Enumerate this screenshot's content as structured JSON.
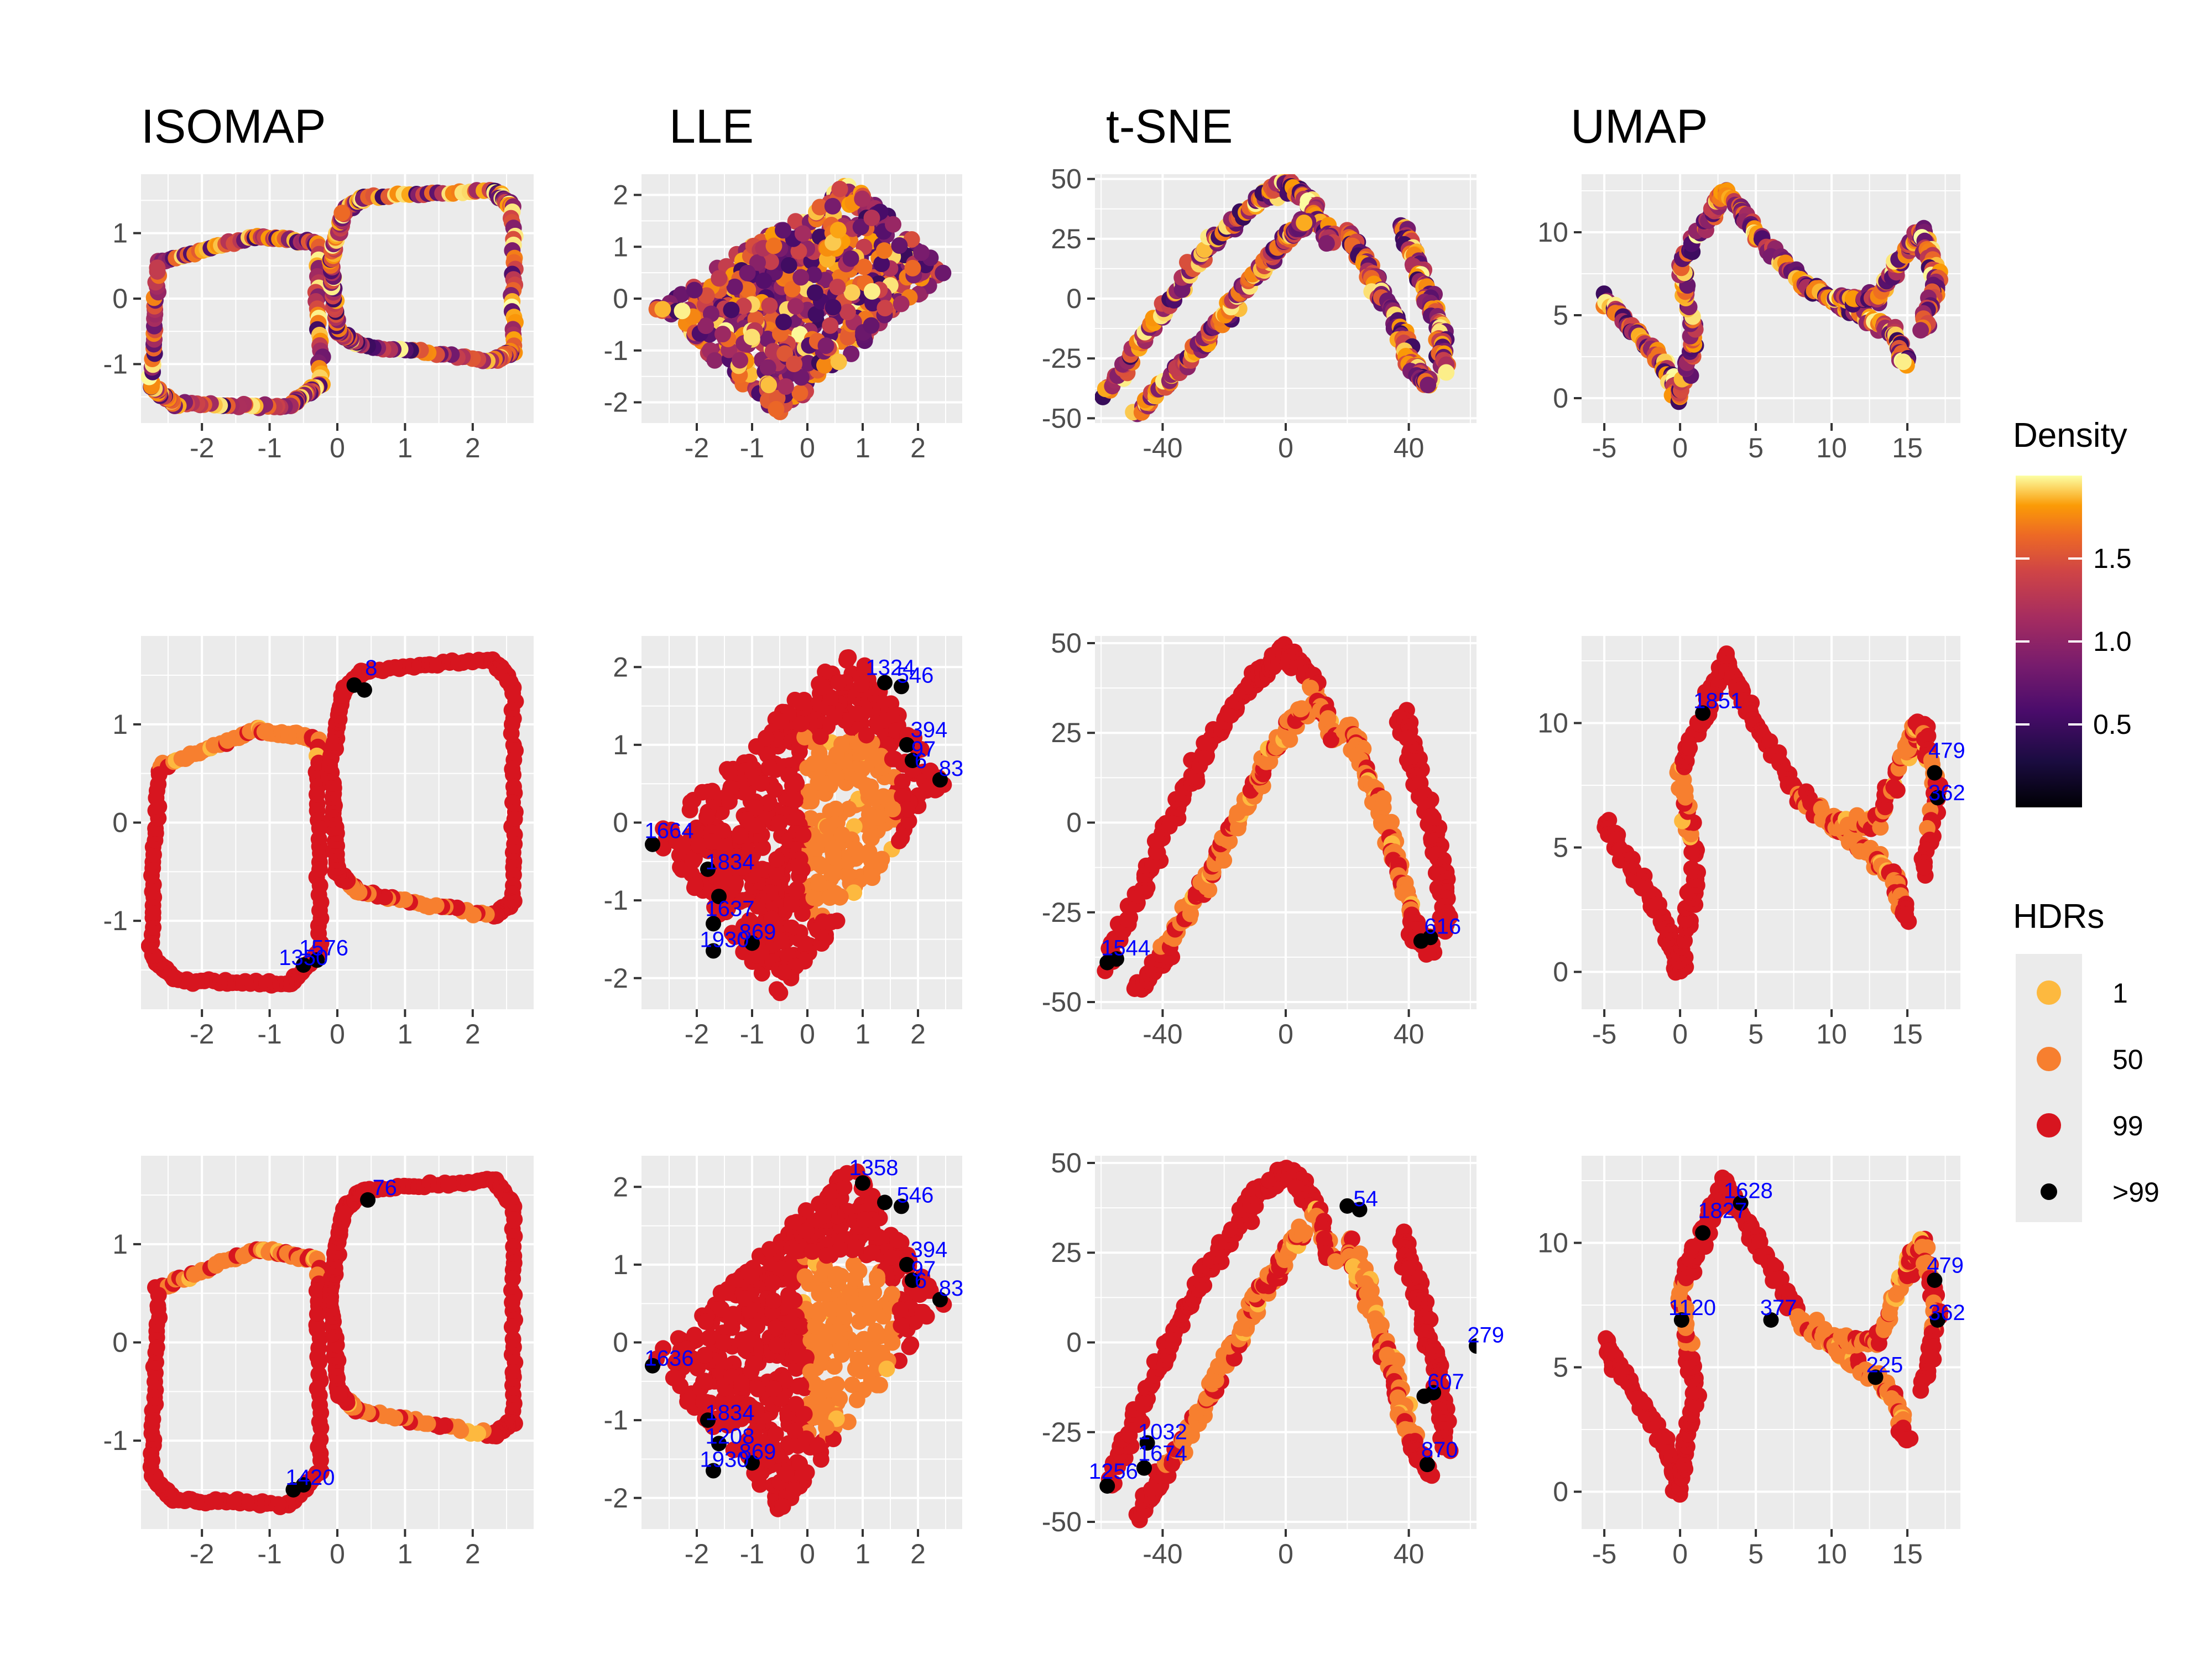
{
  "figure": {
    "columns": [
      {
        "method": "ISOMAP",
        "xlim": [
          -2.9,
          2.9
        ],
        "xticks": [
          -2,
          -1,
          0,
          1,
          2
        ]
      },
      {
        "method": "LLE",
        "xlim": [
          -3.0,
          2.8
        ],
        "xticks": [
          -2,
          -1,
          0,
          1,
          2
        ]
      },
      {
        "method": "t-SNE",
        "xlim": [
          -62,
          62
        ],
        "xticks": [
          -40,
          0,
          40
        ]
      },
      {
        "method": "UMAP",
        "xlim": [
          -6.5,
          18.5
        ],
        "xticks": [
          -5,
          0,
          5,
          10,
          15
        ]
      }
    ],
    "colors": {
      "panel_bg": "#ebebeb",
      "grid": "#ffffff",
      "annotation": "#0000ff"
    }
  },
  "chart_data": [
    {
      "type": "scatter",
      "row": 1,
      "method": "ISOMAP",
      "color_by": "Density",
      "xlim": [
        -2.9,
        2.9
      ],
      "ylim": [
        -1.9,
        1.9
      ],
      "xticks": [
        -2,
        -1,
        0,
        1,
        2
      ],
      "yticks": [
        -1,
        0,
        1
      ],
      "shape": "figure-eight of two rounded squares spanning x -2.8..2.8, y -1.7..1.7"
    },
    {
      "type": "scatter",
      "row": 1,
      "method": "LLE",
      "color_by": "Density",
      "xlim": [
        -3.0,
        2.8
      ],
      "ylim": [
        -2.4,
        2.4
      ],
      "xticks": [
        -2,
        -1,
        0,
        1,
        2
      ],
      "yticks": [
        -2,
        -1,
        0,
        1,
        2
      ],
      "shape": "tilted rectangle from (-0.5,-2.3) to (1.0,2.3) corners, width ~4"
    },
    {
      "type": "scatter",
      "row": 1,
      "method": "t-SNE",
      "color_by": "Density",
      "xlim": [
        -62,
        62
      ],
      "ylim": [
        -52,
        52
      ],
      "xticks": [
        -40,
        0,
        40
      ],
      "yticks": [
        -50,
        -25,
        0,
        25,
        50
      ],
      "shape": "two inverted-V bands meeting near (0,48), right wavy bands at x 30..55"
    },
    {
      "type": "scatter",
      "row": 1,
      "method": "UMAP",
      "color_by": "Density",
      "xlim": [
        -6.5,
        18.5
      ],
      "ylim": [
        -1.5,
        13.5
      ],
      "xticks": [
        -5,
        0,
        5,
        10,
        15
      ],
      "yticks": [
        0,
        5,
        10
      ],
      "shape": "wavy band from (-5,6) through (2,12) to (16,2) and (16,10)"
    },
    {
      "type": "scatter",
      "row": 2,
      "method": "ISOMAP",
      "color_by": "HDRs",
      "xlim": [
        -2.9,
        2.9
      ],
      "ylim": [
        -1.9,
        1.9
      ],
      "xticks": [
        -2,
        -1,
        0,
        1,
        2
      ],
      "yticks": [
        -1,
        0,
        1
      ],
      "outliers": [
        {
          "x": 0.25,
          "y": 1.4
        },
        {
          "x": 0.4,
          "y": 1.35
        },
        {
          "x": -0.5,
          "y": -1.45
        },
        {
          "x": -0.3,
          "y": -1.4
        }
      ],
      "labels": [
        {
          "x": 0.5,
          "y": 1.5,
          "text": "8"
        },
        {
          "x": -0.5,
          "y": -1.45,
          "text": "1350"
        },
        {
          "x": -0.2,
          "y": -1.35,
          "text": "1576"
        }
      ]
    },
    {
      "type": "scatter",
      "row": 2,
      "method": "LLE",
      "color_by": "HDRs",
      "xlim": [
        -3.0,
        2.8
      ],
      "ylim": [
        -2.4,
        2.4
      ],
      "xticks": [
        -2,
        -1,
        0,
        1,
        2
      ],
      "yticks": [
        -2,
        -1,
        0,
        1,
        2
      ],
      "outliers": [
        {
          "x": -2.8,
          "y": -0.28
        },
        {
          "x": -1.8,
          "y": -0.6
        },
        {
          "x": -1.6,
          "y": -0.95
        },
        {
          "x": -1.7,
          "y": -1.3
        },
        {
          "x": -1.7,
          "y": -1.65
        },
        {
          "x": -1.0,
          "y": -1.55
        },
        {
          "x": 1.4,
          "y": 1.8
        },
        {
          "x": 1.7,
          "y": 1.75
        },
        {
          "x": 1.8,
          "y": 1.0
        },
        {
          "x": 1.9,
          "y": 0.8
        },
        {
          "x": 2.4,
          "y": 0.55
        }
      ],
      "labels": [
        {
          "x": -2.5,
          "y": -0.2,
          "text": "1664"
        },
        {
          "x": -1.4,
          "y": -0.6,
          "text": "1834"
        },
        {
          "x": -1.4,
          "y": -1.2,
          "text": "1637"
        },
        {
          "x": -1.5,
          "y": -1.6,
          "text": "1930"
        },
        {
          "x": -0.9,
          "y": -1.5,
          "text": "869"
        },
        {
          "x": 1.5,
          "y": 1.9,
          "text": "1324"
        },
        {
          "x": 1.95,
          "y": 1.8,
          "text": "546"
        },
        {
          "x": 2.2,
          "y": 1.1,
          "text": "394"
        },
        {
          "x": 2.1,
          "y": 0.85,
          "text": "97"
        },
        {
          "x": 2.05,
          "y": 0.7,
          "text": "6"
        },
        {
          "x": 2.6,
          "y": 0.6,
          "text": "83"
        }
      ]
    },
    {
      "type": "scatter",
      "row": 2,
      "method": "t-SNE",
      "color_by": "HDRs",
      "xlim": [
        -62,
        62
      ],
      "ylim": [
        -52,
        52
      ],
      "xticks": [
        -40,
        0,
        40
      ],
      "yticks": [
        -50,
        -25,
        0,
        25,
        50
      ],
      "outliers": [
        {
          "x": -58,
          "y": -39
        },
        {
          "x": -55,
          "y": -38
        },
        {
          "x": 44,
          "y": -33
        },
        {
          "x": 47,
          "y": -32
        }
      ],
      "labels": [
        {
          "x": -52,
          "y": -37,
          "text": "1544"
        },
        {
          "x": 51,
          "y": -31,
          "text": "616"
        }
      ]
    },
    {
      "type": "scatter",
      "row": 2,
      "method": "UMAP",
      "color_by": "HDRs",
      "xlim": [
        -6.5,
        18.5
      ],
      "ylim": [
        -1.5,
        13.5
      ],
      "xticks": [
        -5,
        0,
        5,
        10,
        15
      ],
      "yticks": [
        0,
        5,
        10
      ],
      "outliers": [
        {
          "x": 1.5,
          "y": 10.4
        },
        {
          "x": 16.8,
          "y": 8.0
        },
        {
          "x": 17.0,
          "y": 7.0
        }
      ],
      "labels": [
        {
          "x": 2.5,
          "y": 10.6,
          "text": "1851"
        },
        {
          "x": 17.6,
          "y": 8.6,
          "text": "479"
        },
        {
          "x": 17.6,
          "y": 6.9,
          "text": "362"
        }
      ]
    },
    {
      "type": "scatter",
      "row": 3,
      "method": "ISOMAP",
      "color_by": "HDRs",
      "xlim": [
        -2.9,
        2.9
      ],
      "ylim": [
        -1.9,
        1.9
      ],
      "xticks": [
        -2,
        -1,
        0,
        1,
        2
      ],
      "yticks": [
        -1,
        0,
        1
      ],
      "outliers": [
        {
          "x": 0.45,
          "y": 1.45
        },
        {
          "x": -0.65,
          "y": -1.5
        },
        {
          "x": -0.5,
          "y": -1.45
        }
      ],
      "labels": [
        {
          "x": 0.7,
          "y": 1.5,
          "text": "76"
        },
        {
          "x": -0.4,
          "y": -1.45,
          "text": "1420"
        }
      ]
    },
    {
      "type": "scatter",
      "row": 3,
      "method": "LLE",
      "color_by": "HDRs",
      "xlim": [
        -3.0,
        2.8
      ],
      "ylim": [
        -2.4,
        2.4
      ],
      "xticks": [
        -2,
        -1,
        0,
        1,
        2
      ],
      "yticks": [
        -2,
        -1,
        0,
        1,
        2
      ],
      "outliers": [
        {
          "x": -2.8,
          "y": -0.3
        },
        {
          "x": -1.8,
          "y": -1.0
        },
        {
          "x": -1.6,
          "y": -1.3
        },
        {
          "x": -1.7,
          "y": -1.65
        },
        {
          "x": -1.0,
          "y": -1.55
        },
        {
          "x": 1.0,
          "y": 2.05
        },
        {
          "x": 1.4,
          "y": 1.8
        },
        {
          "x": 1.7,
          "y": 1.75
        },
        {
          "x": 1.8,
          "y": 1.0
        },
        {
          "x": 1.9,
          "y": 0.8
        },
        {
          "x": 2.4,
          "y": 0.55
        }
      ],
      "labels": [
        {
          "x": -2.5,
          "y": -0.3,
          "text": "1636"
        },
        {
          "x": -1.4,
          "y": -1.0,
          "text": "1834"
        },
        {
          "x": -1.4,
          "y": -1.3,
          "text": "1208"
        },
        {
          "x": -1.5,
          "y": -1.6,
          "text": "1930"
        },
        {
          "x": -0.9,
          "y": -1.5,
          "text": "869"
        },
        {
          "x": 1.2,
          "y": 2.15,
          "text": "1358"
        },
        {
          "x": 1.95,
          "y": 1.8,
          "text": "546"
        },
        {
          "x": 2.2,
          "y": 1.1,
          "text": "394"
        },
        {
          "x": 2.1,
          "y": 0.85,
          "text": "97"
        },
        {
          "x": 2.05,
          "y": 0.7,
          "text": "6"
        },
        {
          "x": 2.6,
          "y": 0.6,
          "text": "83"
        }
      ]
    },
    {
      "type": "scatter",
      "row": 3,
      "method": "t-SNE",
      "color_by": "HDRs",
      "xlim": [
        -62,
        62
      ],
      "ylim": [
        -52,
        52
      ],
      "xticks": [
        -40,
        0,
        40
      ],
      "yticks": [
        -50,
        -25,
        0,
        25,
        50
      ],
      "outliers": [
        {
          "x": 20,
          "y": 38
        },
        {
          "x": 24,
          "y": 37
        },
        {
          "x": 62,
          "y": -1
        },
        {
          "x": 45,
          "y": -15
        },
        {
          "x": 48,
          "y": -14
        },
        {
          "x": -45,
          "y": -28
        },
        {
          "x": -46,
          "y": -35
        },
        {
          "x": -58,
          "y": -40
        },
        {
          "x": 46,
          "y": -34
        }
      ],
      "labels": [
        {
          "x": 26,
          "y": 38,
          "text": "54"
        },
        {
          "x": 65,
          "y": 0,
          "text": "279"
        },
        {
          "x": 52,
          "y": -13,
          "text": "607"
        },
        {
          "x": -40,
          "y": -27,
          "text": "1032"
        },
        {
          "x": -40,
          "y": -33,
          "text": "1674"
        },
        {
          "x": -56,
          "y": -38,
          "text": "1256"
        },
        {
          "x": 50,
          "y": -32,
          "text": "870"
        }
      ]
    },
    {
      "type": "scatter",
      "row": 3,
      "method": "UMAP",
      "color_by": "HDRs",
      "xlim": [
        -6.5,
        18.5
      ],
      "ylim": [
        -1.5,
        13.5
      ],
      "xticks": [
        -5,
        0,
        5,
        10,
        15
      ],
      "yticks": [
        0,
        5,
        10
      ],
      "outliers": [
        {
          "x": 1.5,
          "y": 10.4
        },
        {
          "x": 4.0,
          "y": 11.6
        },
        {
          "x": 0.1,
          "y": 6.9
        },
        {
          "x": 6.0,
          "y": 6.9
        },
        {
          "x": 12.9,
          "y": 4.6
        },
        {
          "x": 16.8,
          "y": 8.5
        },
        {
          "x": 17.0,
          "y": 6.9
        }
      ],
      "labels": [
        {
          "x": 2.8,
          "y": 11.0,
          "text": "1827"
        },
        {
          "x": 4.5,
          "y": 11.8,
          "text": "1628"
        },
        {
          "x": 0.8,
          "y": 7.1,
          "text": "1120"
        },
        {
          "x": 6.5,
          "y": 7.1,
          "text": "377"
        },
        {
          "x": 13.5,
          "y": 4.8,
          "text": "225"
        },
        {
          "x": 17.5,
          "y": 8.8,
          "text": "479"
        },
        {
          "x": 17.6,
          "y": 6.9,
          "text": "362"
        }
      ]
    }
  ],
  "legends": {
    "density": {
      "title": "Density",
      "ticks": [
        {
          "value": 1.5,
          "label": "1.5"
        },
        {
          "value": 1.0,
          "label": "1.0"
        },
        {
          "value": 0.5,
          "label": "0.5"
        }
      ],
      "range": [
        0.0,
        2.0
      ]
    },
    "hdr": {
      "title": "HDRs",
      "items": [
        {
          "label": "1",
          "color": "#fdb93f"
        },
        {
          "label": "50",
          "color": "#f77f2f"
        },
        {
          "label": "99",
          "color": "#d7151f"
        },
        {
          "label": ">99",
          "color": "#000000"
        }
      ]
    }
  }
}
